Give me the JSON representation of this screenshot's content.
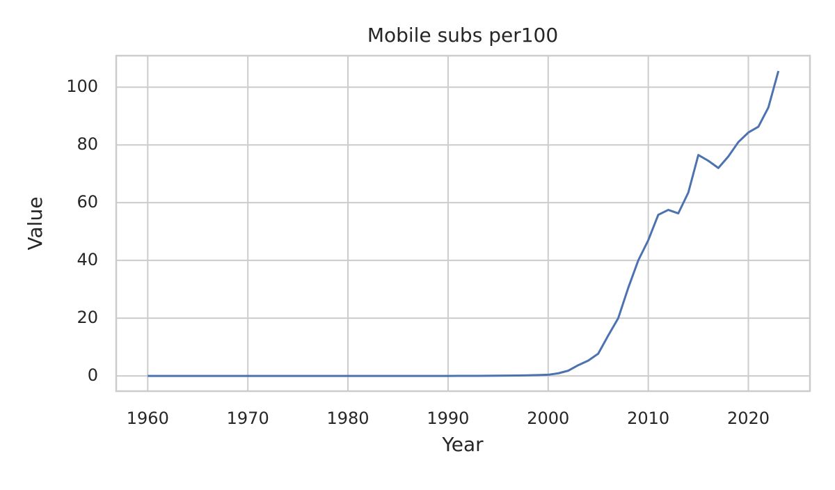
{
  "chart_data": {
    "type": "line",
    "title": "Mobile subs per100",
    "x_label": "Year",
    "y_label": "Value",
    "x": [
      1960,
      1961,
      1962,
      1963,
      1964,
      1965,
      1966,
      1967,
      1968,
      1969,
      1970,
      1971,
      1972,
      1973,
      1974,
      1975,
      1976,
      1977,
      1978,
      1979,
      1980,
      1981,
      1982,
      1983,
      1984,
      1985,
      1986,
      1987,
      1988,
      1989,
      1990,
      1991,
      1992,
      1993,
      1994,
      1995,
      1996,
      1997,
      1998,
      1999,
      2000,
      2001,
      2002,
      2003,
      2004,
      2005,
      2006,
      2007,
      2008,
      2009,
      2010,
      2011,
      2012,
      2013,
      2014,
      2015,
      2016,
      2017,
      2018,
      2019,
      2020,
      2021,
      2022,
      2023
    ],
    "series": [
      {
        "name": "Mobile subs per100",
        "color": "#4c72b0",
        "values": [
          0,
          0,
          0,
          0,
          0,
          0,
          0,
          0,
          0,
          0,
          0,
          0,
          0,
          0,
          0,
          0,
          0,
          0,
          0,
          0,
          0,
          0,
          0,
          0,
          0,
          0,
          0,
          0,
          0,
          0,
          0,
          0.01,
          0.02,
          0.03,
          0.05,
          0.07,
          0.1,
          0.15,
          0.2,
          0.3,
          0.4,
          0.9,
          1.8,
          3.7,
          5.3,
          7.7,
          14,
          20,
          30.5,
          40,
          47,
          55.8,
          57.5,
          56.3,
          63.5,
          76.5,
          74.5,
          72,
          76,
          81,
          84.3,
          86.3,
          93,
          105.6
        ]
      }
    ],
    "xlim": [
      1956.85,
      2026.15
    ],
    "xticks": [
      1960,
      1970,
      1980,
      1990,
      2000,
      2010,
      2020
    ],
    "ylim": [
      -5.28,
      110.9
    ],
    "yticks": [
      0,
      20,
      40,
      60,
      80,
      100
    ],
    "grid": true
  }
}
